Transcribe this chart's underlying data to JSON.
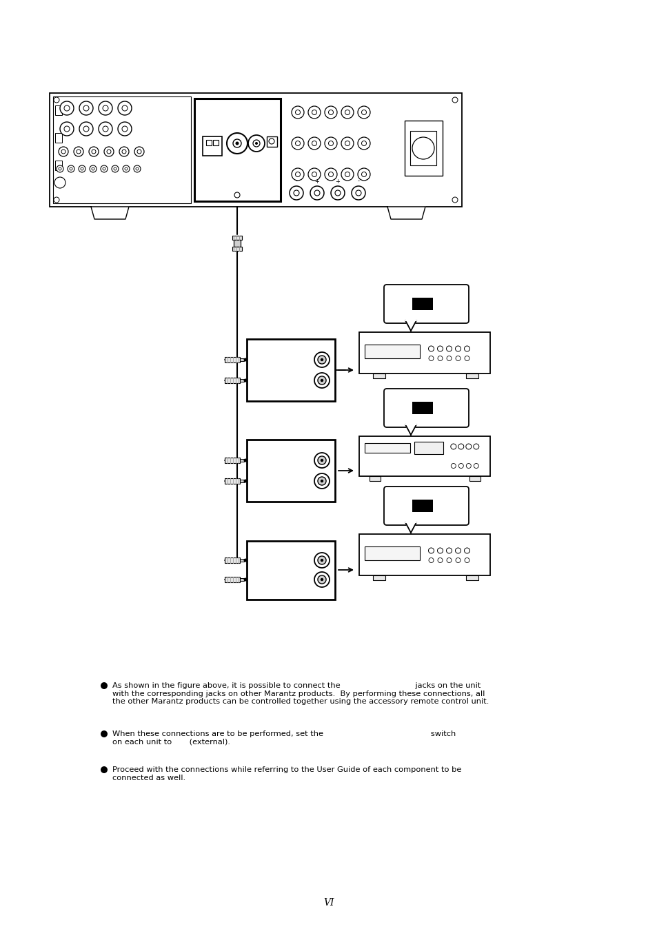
{
  "page_number": "VI",
  "background_color": "#ffffff",
  "line_color": "#000000",
  "text_color": "#000000",
  "bullet_text_1": "As shown in the figure above, it is possible to connect the                              jacks on the unit\nwith the corresponding jacks on other Marantz products.  By performing these connections, all\nthe other Marantz products can be controlled together using the accessory remote control unit.",
  "bullet_text_2": "When these connections are to be performed, set the                                           switch\non each unit to       (external).",
  "bullet_text_3": "Proceed with the connections while referring to the User Guide of each component to be\nconnected as well."
}
